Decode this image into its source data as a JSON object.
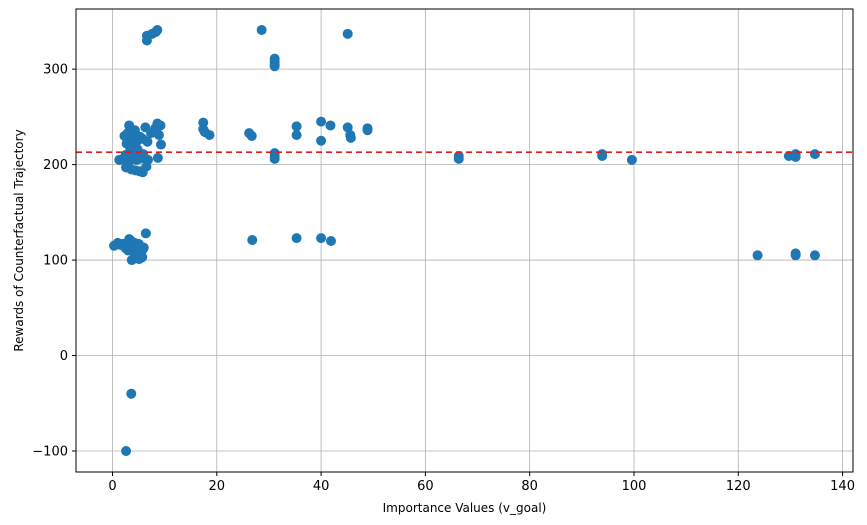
{
  "chart_data": {
    "type": "scatter",
    "title": "",
    "xlabel": "Importance Values (v_goal)",
    "ylabel": "Rewards of Counterfactual Trajectory",
    "xlim": [
      -7,
      142
    ],
    "ylim": [
      -122,
      363
    ],
    "xticks": [
      0,
      20,
      40,
      60,
      80,
      100,
      120,
      140
    ],
    "yticks": [
      -100,
      0,
      100,
      200,
      300
    ],
    "xtick_labels": [
      "0",
      "20",
      "40",
      "60",
      "80",
      "100",
      "120",
      "140"
    ],
    "ytick_labels": [
      "−100",
      "0",
      "100",
      "200",
      "300"
    ],
    "grid": true,
    "point_color": "#1f77b4",
    "reference_line": {
      "y": 213,
      "color": "#e41a1c",
      "style": "dashed"
    },
    "points": [
      [
        0.3,
        115
      ],
      [
        1.0,
        118
      ],
      [
        1.5,
        116
      ],
      [
        2.0,
        117
      ],
      [
        2.3,
        114
      ],
      [
        2.6,
        112
      ],
      [
        2.8,
        118
      ],
      [
        3.0,
        110
      ],
      [
        3.3,
        116
      ],
      [
        3.6,
        120
      ],
      [
        3.8,
        113
      ],
      [
        4.0,
        111
      ],
      [
        4.2,
        118
      ],
      [
        4.5,
        115
      ],
      [
        4.7,
        112
      ],
      [
        5.0,
        117
      ],
      [
        5.2,
        110
      ],
      [
        5.5,
        114
      ],
      [
        5.8,
        111
      ],
      [
        6.0,
        113
      ],
      [
        3.7,
        100
      ],
      [
        4.2,
        103
      ],
      [
        4.8,
        102
      ],
      [
        5.1,
        101
      ],
      [
        5.4,
        105
      ],
      [
        5.7,
        103
      ],
      [
        4.4,
        108
      ],
      [
        6.4,
        128
      ],
      [
        3.2,
        122
      ],
      [
        1.3,
        205
      ],
      [
        2.0,
        206
      ],
      [
        2.6,
        204
      ],
      [
        3.1,
        207
      ],
      [
        3.5,
        205
      ],
      [
        4.0,
        206
      ],
      [
        4.6,
        205
      ],
      [
        5.2,
        206
      ],
      [
        6.0,
        207
      ],
      [
        6.8,
        205
      ],
      [
        2.6,
        197
      ],
      [
        3.6,
        195
      ],
      [
        4.4,
        194
      ],
      [
        5.2,
        193
      ],
      [
        5.8,
        192
      ],
      [
        6.5,
        198
      ],
      [
        2.5,
        210
      ],
      [
        3.4,
        211
      ],
      [
        4.3,
        212
      ],
      [
        5.1,
        210
      ],
      [
        5.9,
        211
      ],
      [
        3.2,
        241
      ],
      [
        4.3,
        236
      ],
      [
        2.7,
        222
      ],
      [
        3.6,
        226
      ],
      [
        4.1,
        229
      ],
      [
        4.6,
        224
      ],
      [
        5.3,
        229
      ],
      [
        5.8,
        227
      ],
      [
        6.3,
        239
      ],
      [
        7.4,
        233
      ],
      [
        8.2,
        238
      ],
      [
        8.6,
        243
      ],
      [
        9.2,
        241
      ],
      [
        9.3,
        221
      ],
      [
        8.9,
        231
      ],
      [
        6.7,
        224
      ],
      [
        2.9,
        233
      ],
      [
        3.9,
        218
      ],
      [
        4.8,
        216
      ],
      [
        2.3,
        230
      ],
      [
        8.7,
        207
      ],
      [
        3.4,
        217
      ],
      [
        6.6,
        335
      ],
      [
        6.6,
        330
      ],
      [
        7.6,
        337
      ],
      [
        8.3,
        339
      ],
      [
        8.6,
        341
      ],
      [
        17.4,
        244
      ],
      [
        17.4,
        237
      ],
      [
        18.6,
        231
      ],
      [
        17.7,
        234
      ],
      [
        26.2,
        233
      ],
      [
        26.7,
        230
      ],
      [
        26.8,
        121
      ],
      [
        28.6,
        341
      ],
      [
        31.1,
        311
      ],
      [
        31.1,
        308
      ],
      [
        31.1,
        305
      ],
      [
        31.1,
        303
      ],
      [
        31.1,
        212
      ],
      [
        31.1,
        209
      ],
      [
        31.1,
        206
      ],
      [
        35.3,
        240
      ],
      [
        35.3,
        231
      ],
      [
        35.3,
        123
      ],
      [
        40.0,
        245
      ],
      [
        40.0,
        225
      ],
      [
        40.0,
        123
      ],
      [
        41.8,
        241
      ],
      [
        41.9,
        120
      ],
      [
        45.1,
        337
      ],
      [
        45.1,
        239
      ],
      [
        45.6,
        231
      ],
      [
        45.7,
        228
      ],
      [
        48.9,
        238
      ],
      [
        48.9,
        236
      ],
      [
        66.4,
        209
      ],
      [
        66.4,
        206
      ],
      [
        93.9,
        211
      ],
      [
        93.9,
        209
      ],
      [
        99.6,
        205
      ],
      [
        123.7,
        105
      ],
      [
        129.7,
        209
      ],
      [
        131.0,
        211
      ],
      [
        131.0,
        208
      ],
      [
        131.0,
        107
      ],
      [
        131.0,
        105
      ],
      [
        134.7,
        211
      ],
      [
        134.7,
        105
      ],
      [
        3.6,
        -40
      ],
      [
        2.6,
        -100
      ]
    ]
  }
}
